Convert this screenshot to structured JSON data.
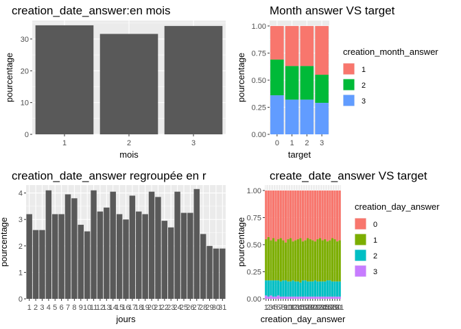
{
  "chart_data": [
    {
      "type": "bar",
      "title": "creation_date_answer:en mois",
      "xlabel": "mois",
      "ylabel": "pourcentage",
      "categories": [
        "1",
        "2",
        "3"
      ],
      "values": [
        34.3,
        31.6,
        34.1
      ],
      "ylim": [
        0,
        35.8
      ],
      "yticks": [
        0,
        10,
        20,
        30
      ],
      "grid": true
    },
    {
      "type": "bar",
      "stacked": true,
      "title": "Month answer VS target",
      "xlabel": "target",
      "ylabel": "pourcentage",
      "categories": [
        "0",
        "1",
        "2",
        "3"
      ],
      "yticks": [
        0,
        0.25,
        0.5,
        0.75,
        1
      ],
      "ytick_labels": [
        "0.00",
        "0.25",
        "0.50",
        "0.75",
        "1.00"
      ],
      "ylim": [
        0,
        1.05
      ],
      "legend_title": "creation_month_answer",
      "legend_position": "right",
      "series": [
        {
          "name": "1",
          "color": "#F8766D",
          "values": [
            0.31,
            0.37,
            0.37,
            0.45
          ]
        },
        {
          "name": "2",
          "color": "#00BA38",
          "values": [
            0.33,
            0.31,
            0.31,
            0.26
          ]
        },
        {
          "name": "3",
          "color": "#619CFF",
          "values": [
            0.36,
            0.32,
            0.32,
            0.29
          ]
        }
      ],
      "grid": true
    },
    {
      "type": "bar",
      "title": "creation_date_answer regroupée en r",
      "xlabel": "jours",
      "ylabel": "pourcentage",
      "categories": [
        "1",
        "2",
        "3",
        "4",
        "5",
        "6",
        "7",
        "8",
        "9",
        "10",
        "11",
        "12",
        "13",
        "14",
        "15",
        "16",
        "17",
        "18",
        "19",
        "20",
        "21",
        "22",
        "23",
        "24",
        "25",
        "26",
        "27",
        "28",
        "29",
        "30",
        "31"
      ],
      "values": [
        3.2,
        2.6,
        2.6,
        4.1,
        3.2,
        3.2,
        3.95,
        3.8,
        2.8,
        2.55,
        4.1,
        3.3,
        3.45,
        4.05,
        3.2,
        3.0,
        3.9,
        3.3,
        3.2,
        4.05,
        3.85,
        2.95,
        2.7,
        4.05,
        3.25,
        3.25,
        4.15,
        2.45,
        2.0,
        1.9,
        1.9
      ],
      "ylim": [
        0,
        4.3
      ],
      "yticks": [
        0,
        1,
        2,
        3,
        4
      ],
      "grid": true
    },
    {
      "type": "bar",
      "stacked": true,
      "title": "create_date_answer VS target",
      "xlabel": "creation_day_answer",
      "ylabel": "pourcentage",
      "categories": [
        "1",
        "2",
        "3",
        "4",
        "5",
        "6",
        "7",
        "8",
        "9",
        "10",
        "11",
        "12",
        "13",
        "14",
        "15",
        "16",
        "17",
        "18",
        "19",
        "20",
        "21",
        "22",
        "23",
        "24",
        "25",
        "26",
        "27",
        "28",
        "29",
        "30",
        "31"
      ],
      "yticks": [
        0,
        0.25,
        0.5,
        0.75,
        1
      ],
      "ytick_labels": [
        "0.00",
        "0.25",
        "0.50",
        "0.75",
        "1.00"
      ],
      "ylim": [
        0,
        1.05
      ],
      "legend_title": "creation_day_answer",
      "legend_position": "right",
      "series": [
        {
          "name": "0",
          "color": "#F8766D",
          "values": [
            0.45,
            0.43,
            0.46,
            0.44,
            0.47,
            0.45,
            0.44,
            0.46,
            0.48,
            0.45,
            0.44,
            0.47,
            0.46,
            0.45,
            0.44,
            0.47,
            0.46,
            0.44,
            0.45,
            0.46,
            0.47,
            0.45,
            0.44,
            0.46,
            0.45,
            0.47,
            0.46,
            0.44,
            0.45,
            0.47,
            0.46
          ]
        },
        {
          "name": "1",
          "color": "#7CAE00",
          "values": [
            0.38,
            0.4,
            0.37,
            0.39,
            0.36,
            0.38,
            0.4,
            0.37,
            0.35,
            0.39,
            0.4,
            0.36,
            0.38,
            0.39,
            0.41,
            0.36,
            0.37,
            0.4,
            0.39,
            0.38,
            0.36,
            0.39,
            0.4,
            0.38,
            0.39,
            0.36,
            0.37,
            0.4,
            0.39,
            0.37,
            0.38
          ]
        },
        {
          "name": "2",
          "color": "#00BFC4",
          "values": [
            0.14,
            0.15,
            0.14,
            0.15,
            0.15,
            0.14,
            0.14,
            0.15,
            0.15,
            0.14,
            0.14,
            0.15,
            0.14,
            0.14,
            0.13,
            0.15,
            0.15,
            0.14,
            0.14,
            0.14,
            0.15,
            0.14,
            0.14,
            0.14,
            0.14,
            0.15,
            0.15,
            0.14,
            0.14,
            0.14,
            0.14
          ]
        },
        {
          "name": "3",
          "color": "#C77CFF",
          "values": [
            0.03,
            0.02,
            0.03,
            0.02,
            0.02,
            0.03,
            0.02,
            0.02,
            0.02,
            0.02,
            0.02,
            0.02,
            0.02,
            0.02,
            0.02,
            0.02,
            0.02,
            0.02,
            0.02,
            0.02,
            0.02,
            0.02,
            0.02,
            0.02,
            0.02,
            0.02,
            0.02,
            0.02,
            0.02,
            0.02,
            0.02
          ]
        }
      ],
      "grid": true
    }
  ]
}
